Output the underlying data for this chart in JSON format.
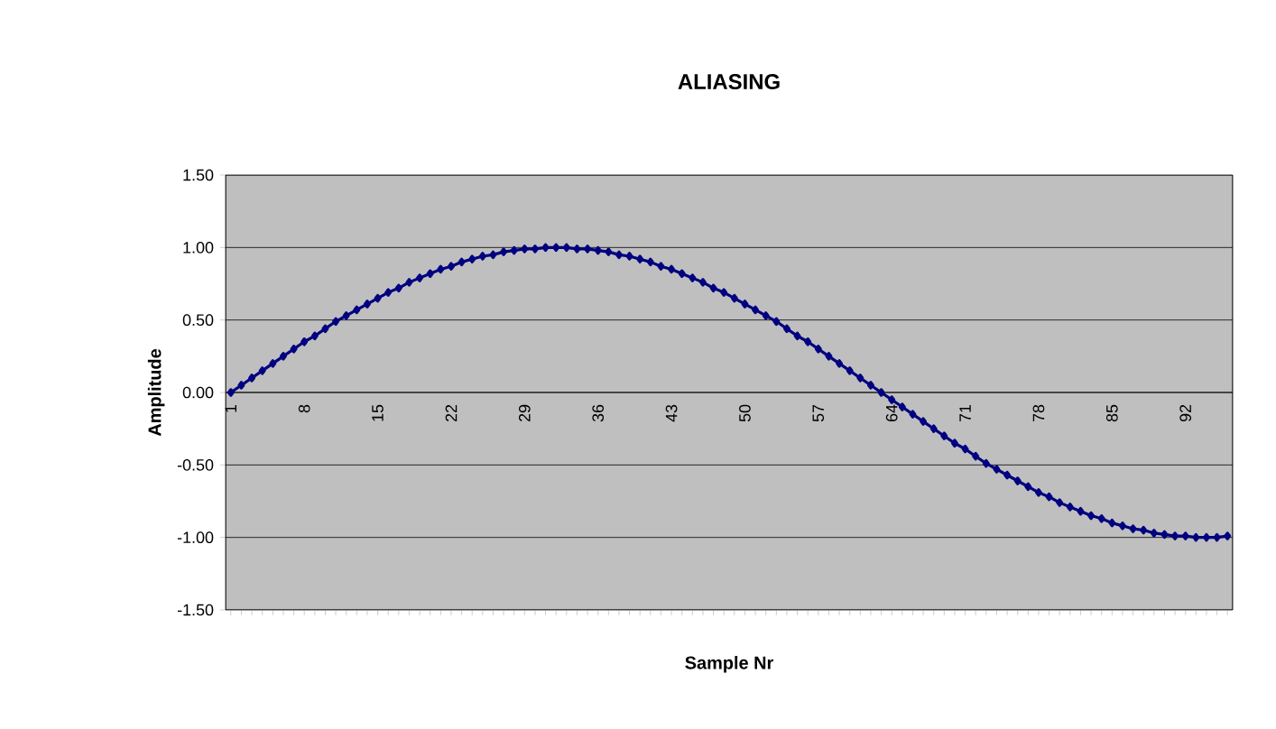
{
  "chart_data": {
    "type": "line",
    "title": "ALIASING",
    "xlabel": "Sample Nr",
    "ylabel": "Amplitude",
    "categories": [
      "1",
      null,
      null,
      null,
      null,
      null,
      null,
      "8",
      null,
      null,
      null,
      null,
      null,
      null,
      "15",
      null,
      null,
      null,
      null,
      null,
      null,
      "22",
      null,
      null,
      null,
      null,
      null,
      null,
      "29",
      null,
      null,
      null,
      null,
      null,
      null,
      "36",
      null,
      null,
      null,
      null,
      null,
      null,
      "43",
      null,
      null,
      null,
      null,
      null,
      null,
      "50",
      null,
      null,
      null,
      null,
      null,
      null,
      "57",
      null,
      null,
      null,
      null,
      null,
      null,
      "64",
      null,
      null,
      null,
      null,
      null,
      null,
      "71",
      null,
      null,
      null,
      null,
      null,
      null,
      "78",
      null,
      null,
      null,
      null,
      null,
      null,
      "85",
      null,
      null,
      null,
      null,
      null,
      null,
      "92",
      null,
      null,
      null,
      null
    ],
    "series": [
      {
        "color": "#000080",
        "values": [
          0.0,
          0.05,
          0.1,
          0.15,
          0.2,
          0.25,
          0.3,
          0.35,
          0.39,
          0.44,
          0.49,
          0.53,
          0.57,
          0.61,
          0.65,
          0.69,
          0.72,
          0.76,
          0.79,
          0.82,
          0.85,
          0.87,
          0.9,
          0.92,
          0.94,
          0.95,
          0.97,
          0.98,
          0.99,
          0.99,
          1.0,
          1.0,
          1.0,
          0.99,
          0.99,
          0.98,
          0.97,
          0.95,
          0.94,
          0.92,
          0.9,
          0.87,
          0.85,
          0.82,
          0.79,
          0.76,
          0.72,
          0.69,
          0.65,
          0.61,
          0.57,
          0.53,
          0.49,
          0.44,
          0.39,
          0.35,
          0.3,
          0.25,
          0.2,
          0.15,
          0.1,
          0.05,
          0.0,
          -0.05,
          -0.1,
          -0.15,
          -0.2,
          -0.25,
          -0.3,
          -0.35,
          -0.39,
          -0.44,
          -0.49,
          -0.53,
          -0.57,
          -0.61,
          -0.65,
          -0.69,
          -0.72,
          -0.76,
          -0.79,
          -0.82,
          -0.85,
          -0.87,
          -0.9,
          -0.92,
          -0.94,
          -0.95,
          -0.97,
          -0.98,
          -0.99,
          -0.99,
          -1.0,
          -1.0,
          -1.0,
          -0.99
        ]
      }
    ],
    "ylim": [
      -1.5,
      1.5
    ],
    "yticks": [
      {
        "value": -1.5,
        "label": "-1.50"
      },
      {
        "value": -1.0,
        "label": "-1.00"
      },
      {
        "value": -0.5,
        "label": "-0.50"
      },
      {
        "value": 0,
        "label": "0.00"
      },
      {
        "value": 0.5,
        "label": "0.50"
      },
      {
        "value": 1.0,
        "label": "1.00"
      },
      {
        "value": 1.5,
        "label": "1.50"
      }
    ],
    "grid": "y",
    "marker": "diamond",
    "line_style": "solid"
  }
}
